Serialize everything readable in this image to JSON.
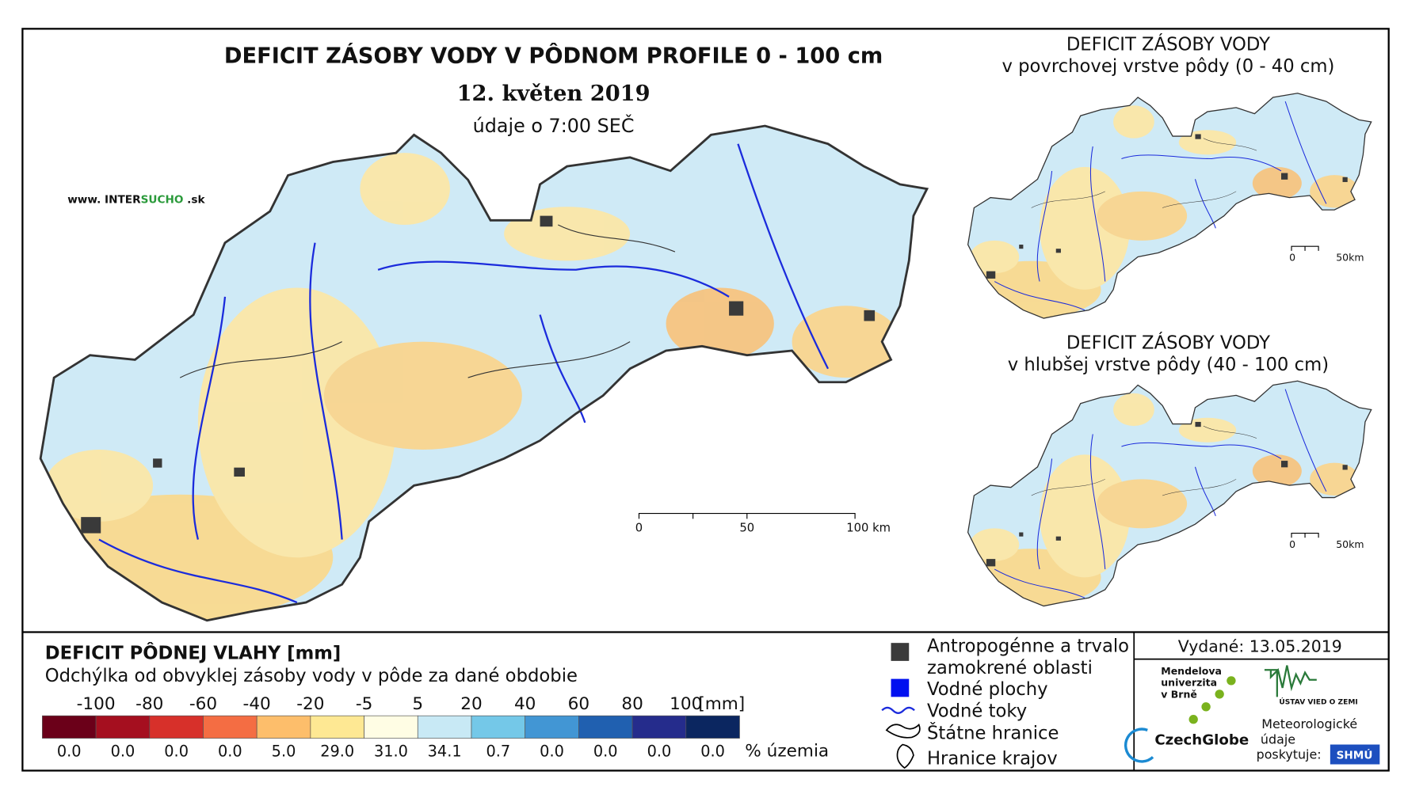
{
  "main_map": {
    "title": "DEFICIT ZÁSOBY VODY V PÔDNOM PROFILE 0 - 100 cm",
    "date": "12. květen 2019",
    "time": "údaje o 7:00 SEČ",
    "website": {
      "prefix": "www. INTER",
      "brand": "SUCHO",
      "suffix": " .sk"
    },
    "scale": [
      "0",
      "50",
      "100 km"
    ]
  },
  "inset_top": {
    "title": "DEFICIT ZÁSOBY VODY",
    "subtitle": "v povrchovej vrstve pôdy (0 - 40 cm)",
    "scale": [
      "0",
      "50km"
    ]
  },
  "inset_bottom": {
    "title": "DEFICIT ZÁSOBY VODY",
    "subtitle": "v hlubšej vrstve pôdy (40 - 100 cm)",
    "scale": [
      "0",
      "50km"
    ]
  },
  "legend": {
    "title": "DEFICIT PÔDNEJ VLAHY [mm]",
    "subtitle": "Odchýlka od obvyklej zásoby vody v pôde za dané obdobie",
    "thresholds": [
      -100,
      -80,
      -60,
      -40,
      -20,
      -5,
      5,
      20,
      40,
      60,
      80,
      100
    ],
    "unit": "[mm]",
    "colors": [
      "#6b0019",
      "#a50f1f",
      "#d7302a",
      "#f46d43",
      "#fdbe6b",
      "#fee893",
      "#fffde4",
      "#c8e9f5",
      "#74c8e8",
      "#4296d4",
      "#2060b0",
      "#252c8c",
      "#0b2660"
    ],
    "shares": [
      "0.0",
      "0.0",
      "0.0",
      "0.0",
      "5.0",
      "29.0",
      "31.0",
      "34.1",
      "0.7",
      "0.0",
      "0.0",
      "0.0",
      "0.0"
    ],
    "share_unit": "% územia"
  },
  "symbols": {
    "items": [
      "Antropogénne a trvalo zamokrené oblasti",
      "Vodné plochy",
      "Vodné toky",
      "Štátne hranice",
      "Hranice krajov"
    ]
  },
  "footer": {
    "issued": "Vydané: 13.05.2019",
    "mendel": [
      "Mendelova",
      "univerzita",
      "v Brně"
    ],
    "czechglobe": "CzechGlobe",
    "ustav": "ÚSTAV VIED O ZEMI",
    "meteo": [
      "Meteorologické",
      "údaje",
      "poskytuje:"
    ],
    "shmu": "SHMÚ"
  }
}
